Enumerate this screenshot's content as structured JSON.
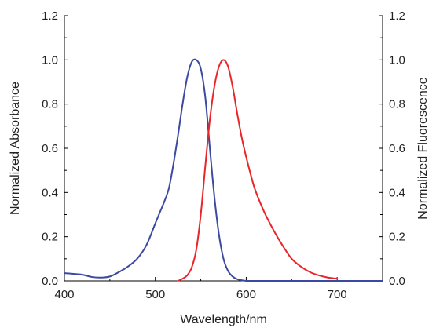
{
  "chart_data": {
    "type": "line",
    "title": "",
    "xlabel": "Wavelength/nm",
    "ylabel_left": "Normalized Absorbance",
    "ylabel_right": "Normalized Fluorescence",
    "xlim": [
      400,
      750
    ],
    "ylim": [
      0,
      1.2
    ],
    "xticks": [
      400,
      500,
      600,
      700
    ],
    "xtick_labels": [
      "400",
      "500",
      "600",
      "700"
    ],
    "yticks": [
      0,
      0.2,
      0.4,
      0.6,
      0.8,
      1.0,
      1.2
    ],
    "ytick_labels": [
      "0.0",
      "0.2",
      "0.4",
      "0.6",
      "0.8",
      "1.0",
      "1.2"
    ],
    "grid": false,
    "series": [
      {
        "color": "#3b4aa0",
        "axis": "left",
        "x": [
          400,
          410,
          420,
          430,
          440,
          450,
          460,
          470,
          480,
          490,
          500,
          505,
          510,
          515,
          520,
          525,
          530,
          535,
          540,
          545,
          550,
          555,
          560,
          565,
          570,
          575,
          580,
          585,
          590,
          595,
          600,
          610,
          650,
          700,
          750
        ],
        "y": [
          0.035,
          0.032,
          0.028,
          0.018,
          0.015,
          0.02,
          0.04,
          0.065,
          0.1,
          0.16,
          0.26,
          0.31,
          0.36,
          0.42,
          0.53,
          0.66,
          0.8,
          0.92,
          0.99,
          1.0,
          0.96,
          0.83,
          0.6,
          0.38,
          0.21,
          0.1,
          0.045,
          0.02,
          0.008,
          0.003,
          0.0,
          0.0,
          0.0,
          0.0,
          0.0
        ]
      },
      {
        "color": "#e8262a",
        "axis": "right",
        "x": [
          525,
          530,
          535,
          540,
          545,
          550,
          555,
          560,
          565,
          570,
          575,
          580,
          585,
          590,
          595,
          600,
          605,
          610,
          620,
          630,
          640,
          650,
          660,
          670,
          680,
          690,
          700
        ],
        "y": [
          0.0,
          0.01,
          0.025,
          0.06,
          0.14,
          0.3,
          0.52,
          0.73,
          0.88,
          0.97,
          1.0,
          0.97,
          0.88,
          0.76,
          0.65,
          0.56,
          0.48,
          0.41,
          0.31,
          0.23,
          0.16,
          0.1,
          0.065,
          0.04,
          0.025,
          0.015,
          0.01
        ]
      }
    ]
  }
}
